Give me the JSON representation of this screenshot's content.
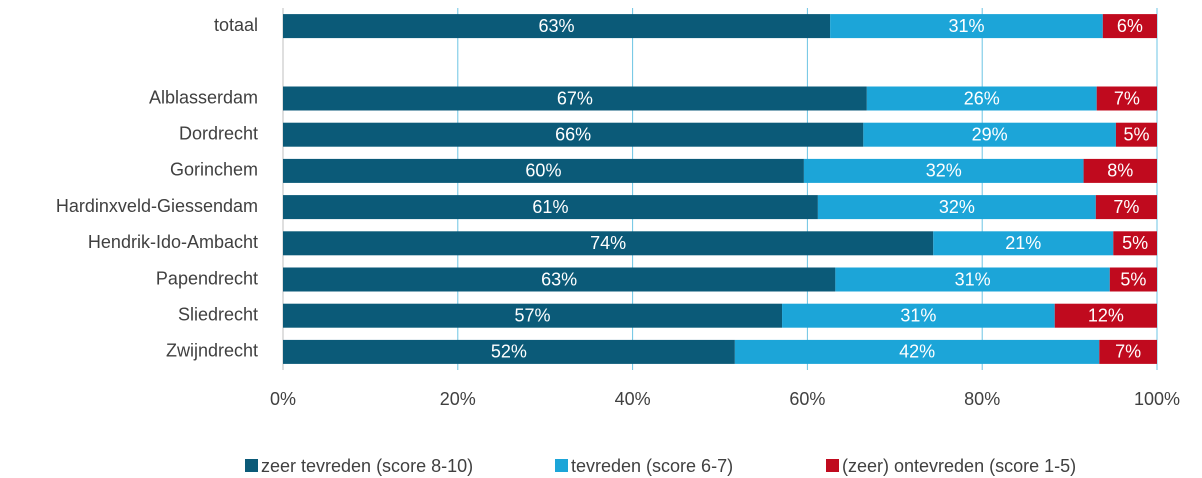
{
  "chart_data": {
    "type": "stacked-barh",
    "categories": [
      "totaal",
      null,
      "Alblasserdam",
      "Dordrecht",
      "Gorinchem",
      "Hardinxveld-Giessendam",
      "Hendrik-Ido-Ambacht",
      "Papendrecht",
      "Sliedrecht",
      "Zwijndrecht"
    ],
    "series": [
      {
        "name": "zeer tevreden (score 8-10)",
        "color": "#0b5a78",
        "values": [
          62.6,
          null,
          66.8,
          66.4,
          59.6,
          61.2,
          74.4,
          63.2,
          57.1,
          51.7
        ],
        "value_labels": [
          "63%",
          null,
          "67%",
          "66%",
          "60%",
          "61%",
          "74%",
          "63%",
          "57%",
          "52%"
        ]
      },
      {
        "name": "tevreden (score 6-7)",
        "color": "#1ca5d8",
        "values": [
          31.2,
          null,
          26.3,
          28.9,
          32.0,
          31.8,
          20.6,
          31.4,
          31.2,
          41.7
        ],
        "value_labels": [
          "31%",
          null,
          "26%",
          "29%",
          "32%",
          "32%",
          "21%",
          "31%",
          "31%",
          "42%"
        ]
      },
      {
        "name": "(zeer) ontevreden (score 1-5)",
        "color": "#c00a1e",
        "values": [
          6.2,
          null,
          6.9,
          4.7,
          8.4,
          7.0,
          5.0,
          5.4,
          11.7,
          6.6
        ],
        "value_labels": [
          "6%",
          null,
          "7%",
          "5%",
          "8%",
          "7%",
          "5%",
          "5%",
          "12%",
          "7%"
        ]
      }
    ],
    "xlim": [
      0,
      100
    ],
    "xticks": [
      {
        "value": 0,
        "label": "0%"
      },
      {
        "value": 20,
        "label": "20%"
      },
      {
        "value": 40,
        "label": "40%"
      },
      {
        "value": 60,
        "label": "60%"
      },
      {
        "value": 80,
        "label": "80%"
      },
      {
        "value": 100,
        "label": "100%"
      }
    ],
    "grid": true,
    "legend": "bottom"
  }
}
